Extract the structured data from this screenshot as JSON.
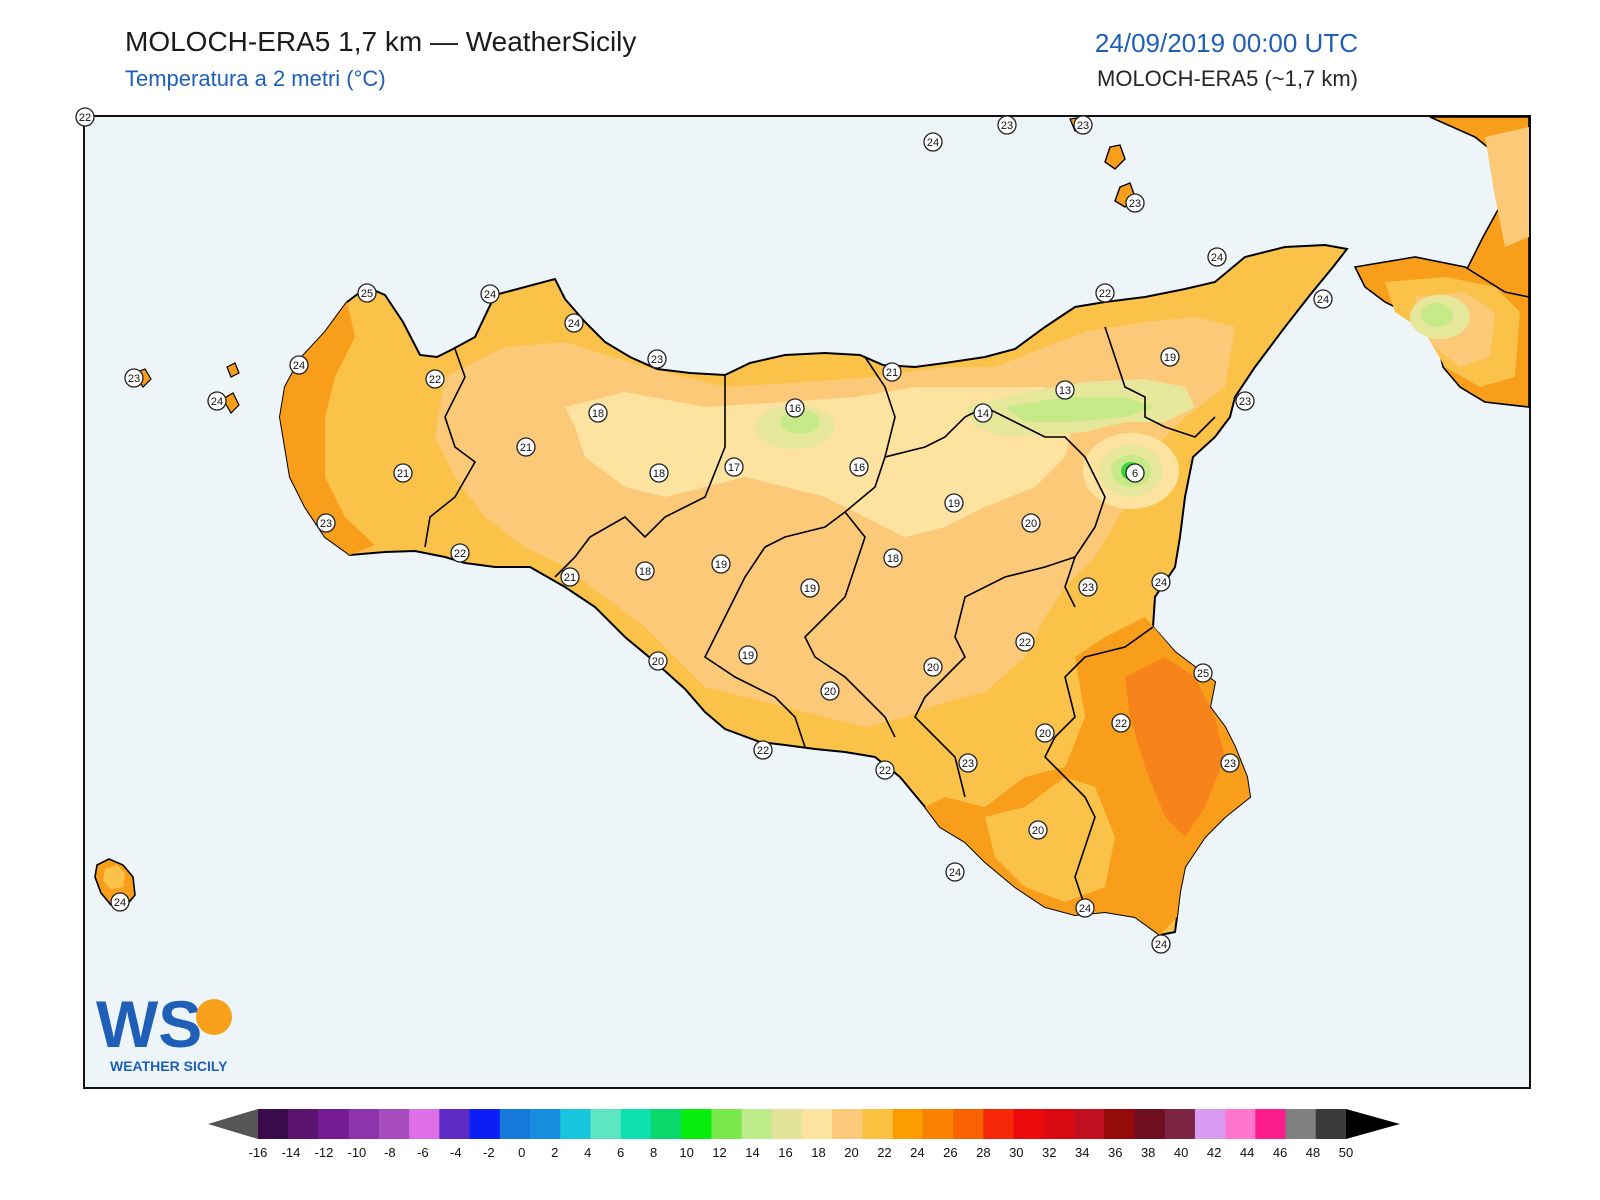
{
  "header": {
    "title": "MOLOCH-ERA5 1,7 km — WeatherSicily",
    "subtitle": "Temperatura a 2 metri (°C)",
    "datetime": "24/09/2019 00:00 UTC",
    "model": "MOLOCH-ERA5 (~1,7 km)"
  },
  "logo": {
    "letters": "WS",
    "text": "WEATHER SICILY"
  },
  "colors": {
    "sea": "#edf5f9",
    "t13": "#c6ea88",
    "t15": "#e6e79a",
    "t17": "#fde2a0",
    "t19": "#fcc978",
    "t21": "#fbc24a",
    "t23": "#f99e1a",
    "t25": "#f7841a",
    "t6": "#3fd13a"
  },
  "stations": [
    {
      "label": "24"
    },
    {
      "label": "23"
    },
    {
      "label": "23"
    },
    {
      "label": "23"
    },
    {
      "label": "24"
    },
    {
      "label": "22"
    },
    {
      "label": "24"
    },
    {
      "label": "25"
    },
    {
      "label": "24"
    },
    {
      "label": "24"
    },
    {
      "label": "23"
    },
    {
      "label": "23"
    },
    {
      "label": "24"
    },
    {
      "label": "24"
    },
    {
      "label": "22"
    },
    {
      "label": "21"
    },
    {
      "label": "19"
    },
    {
      "label": "13"
    },
    {
      "label": "14"
    },
    {
      "label": "16"
    },
    {
      "label": "18"
    },
    {
      "label": "21"
    },
    {
      "label": "21"
    },
    {
      "label": "23"
    },
    {
      "label": "23"
    },
    {
      "label": "6"
    },
    {
      "label": "17"
    },
    {
      "label": "18"
    },
    {
      "label": "16"
    },
    {
      "label": "19"
    },
    {
      "label": "20"
    },
    {
      "label": "22"
    },
    {
      "label": "21"
    },
    {
      "label": "18"
    },
    {
      "label": "19"
    },
    {
      "label": "19"
    },
    {
      "label": "18"
    },
    {
      "label": "23"
    },
    {
      "label": "24"
    },
    {
      "label": "22"
    },
    {
      "label": "20"
    },
    {
      "label": "19"
    },
    {
      "label": "20"
    },
    {
      "label": "20"
    },
    {
      "label": "25"
    },
    {
      "label": "22"
    },
    {
      "label": "20"
    },
    {
      "label": "23"
    },
    {
      "label": "22"
    },
    {
      "label": "22"
    },
    {
      "label": "23"
    },
    {
      "label": "20"
    },
    {
      "label": "24"
    },
    {
      "label": "24"
    },
    {
      "label": "24"
    },
    {
      "label": "24"
    },
    {
      "label": "22"
    }
  ],
  "colorbar": {
    "ticks": [
      "-16",
      "-14",
      "-12",
      "-10",
      "-8",
      "-6",
      "-4",
      "-2",
      "0",
      "2",
      "4",
      "6",
      "8",
      "10",
      "12",
      "14",
      "16",
      "18",
      "20",
      "22",
      "24",
      "26",
      "28",
      "30",
      "32",
      "34",
      "36",
      "38",
      "40",
      "42",
      "44",
      "46",
      "48",
      "50"
    ],
    "colors": [
      "#3a0a4a",
      "#5a1470",
      "#761c93",
      "#8e34aa",
      "#a64cbf",
      "#df6fe8",
      "#5d2ac4",
      "#0b1ef5",
      "#1679d9",
      "#168dde",
      "#17c6de",
      "#5ee6c3",
      "#0ee1ad",
      "#0ad86b",
      "#07f00d",
      "#78e84a",
      "#bfec8a",
      "#e3e49a",
      "#fde2a0",
      "#fbc97a",
      "#fbc240",
      "#fb9d00",
      "#f98200",
      "#f96200",
      "#f52708",
      "#ed0a0a",
      "#d90b10",
      "#c00f1f",
      "#950b0b",
      "#6e0e1e",
      "#7d2443",
      "#d89af2",
      "#ff76cc",
      "#fb1d8c",
      "#808080",
      "#3a3a3a"
    ]
  }
}
